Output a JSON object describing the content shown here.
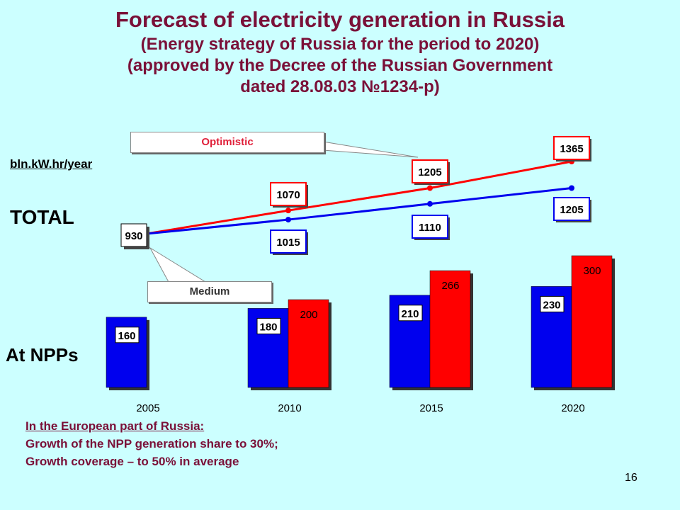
{
  "title": {
    "line1": "Forecast of electricity generation in Russia",
    "line2": "(Energy strategy of Russia for the period to 2020)",
    "line3": "(approved by the Decree of the Russian Government",
    "line4": "dated 28.08.03 №1234-p)"
  },
  "unit_label": "bln.kW.hr/year",
  "total_label": "TOTAL",
  "npp_label": "At NPPs",
  "callouts": {
    "optimistic": "Optimistic",
    "medium": "Medium"
  },
  "note": {
    "heading": "In the European part of Russia:",
    "line1": "Growth of the NPP generation share to 30%;",
    "line2": "Growth coverage – to 50% in average"
  },
  "page_number": "16",
  "colors": {
    "medium": "#0000ee",
    "optimistic": "#ff0000",
    "background": "#ccffff",
    "title": "#7a1038"
  },
  "chart_data": [
    {
      "type": "line",
      "title": "TOTAL",
      "ylabel": "bln.kW.hr/year",
      "x": [
        "2005",
        "2010",
        "2015",
        "2020"
      ],
      "series": [
        {
          "name": "Optimistic",
          "values": [
            930,
            1070,
            1205,
            1365
          ]
        },
        {
          "name": "Medium",
          "values": [
            930,
            1015,
            1110,
            1205
          ]
        }
      ]
    },
    {
      "type": "bar",
      "title": "At NPPs",
      "categories": [
        "2005",
        "2010",
        "2015",
        "2020"
      ],
      "series": [
        {
          "name": "Medium",
          "values": [
            160,
            180,
            210,
            230
          ]
        },
        {
          "name": "Optimistic",
          "values": [
            null,
            200,
            266,
            300
          ]
        }
      ]
    }
  ]
}
